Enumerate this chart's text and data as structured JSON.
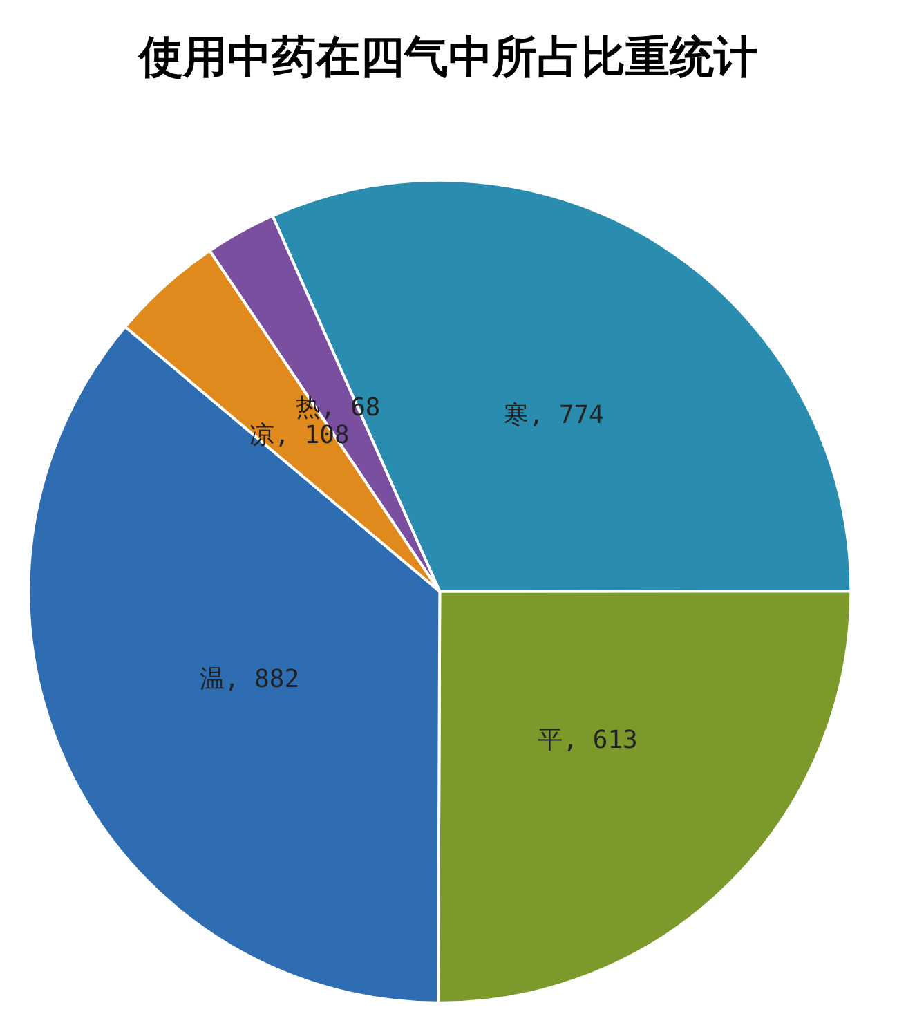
{
  "chart_data": {
    "type": "pie",
    "title": "使用中药在四气中所占比重统计",
    "categories": [
      "寒",
      "平",
      "温",
      "凉",
      "热"
    ],
    "values": [
      774,
      613,
      882,
      108,
      68
    ],
    "colors": [
      "#2a8db0",
      "#7c9a2c",
      "#2f6db3",
      "#e08a1e",
      "#7a4fa0"
    ],
    "value_labels": [
      ", 774",
      ", 613",
      ", 882",
      ", 108",
      ", 68"
    ],
    "legend": false
  }
}
